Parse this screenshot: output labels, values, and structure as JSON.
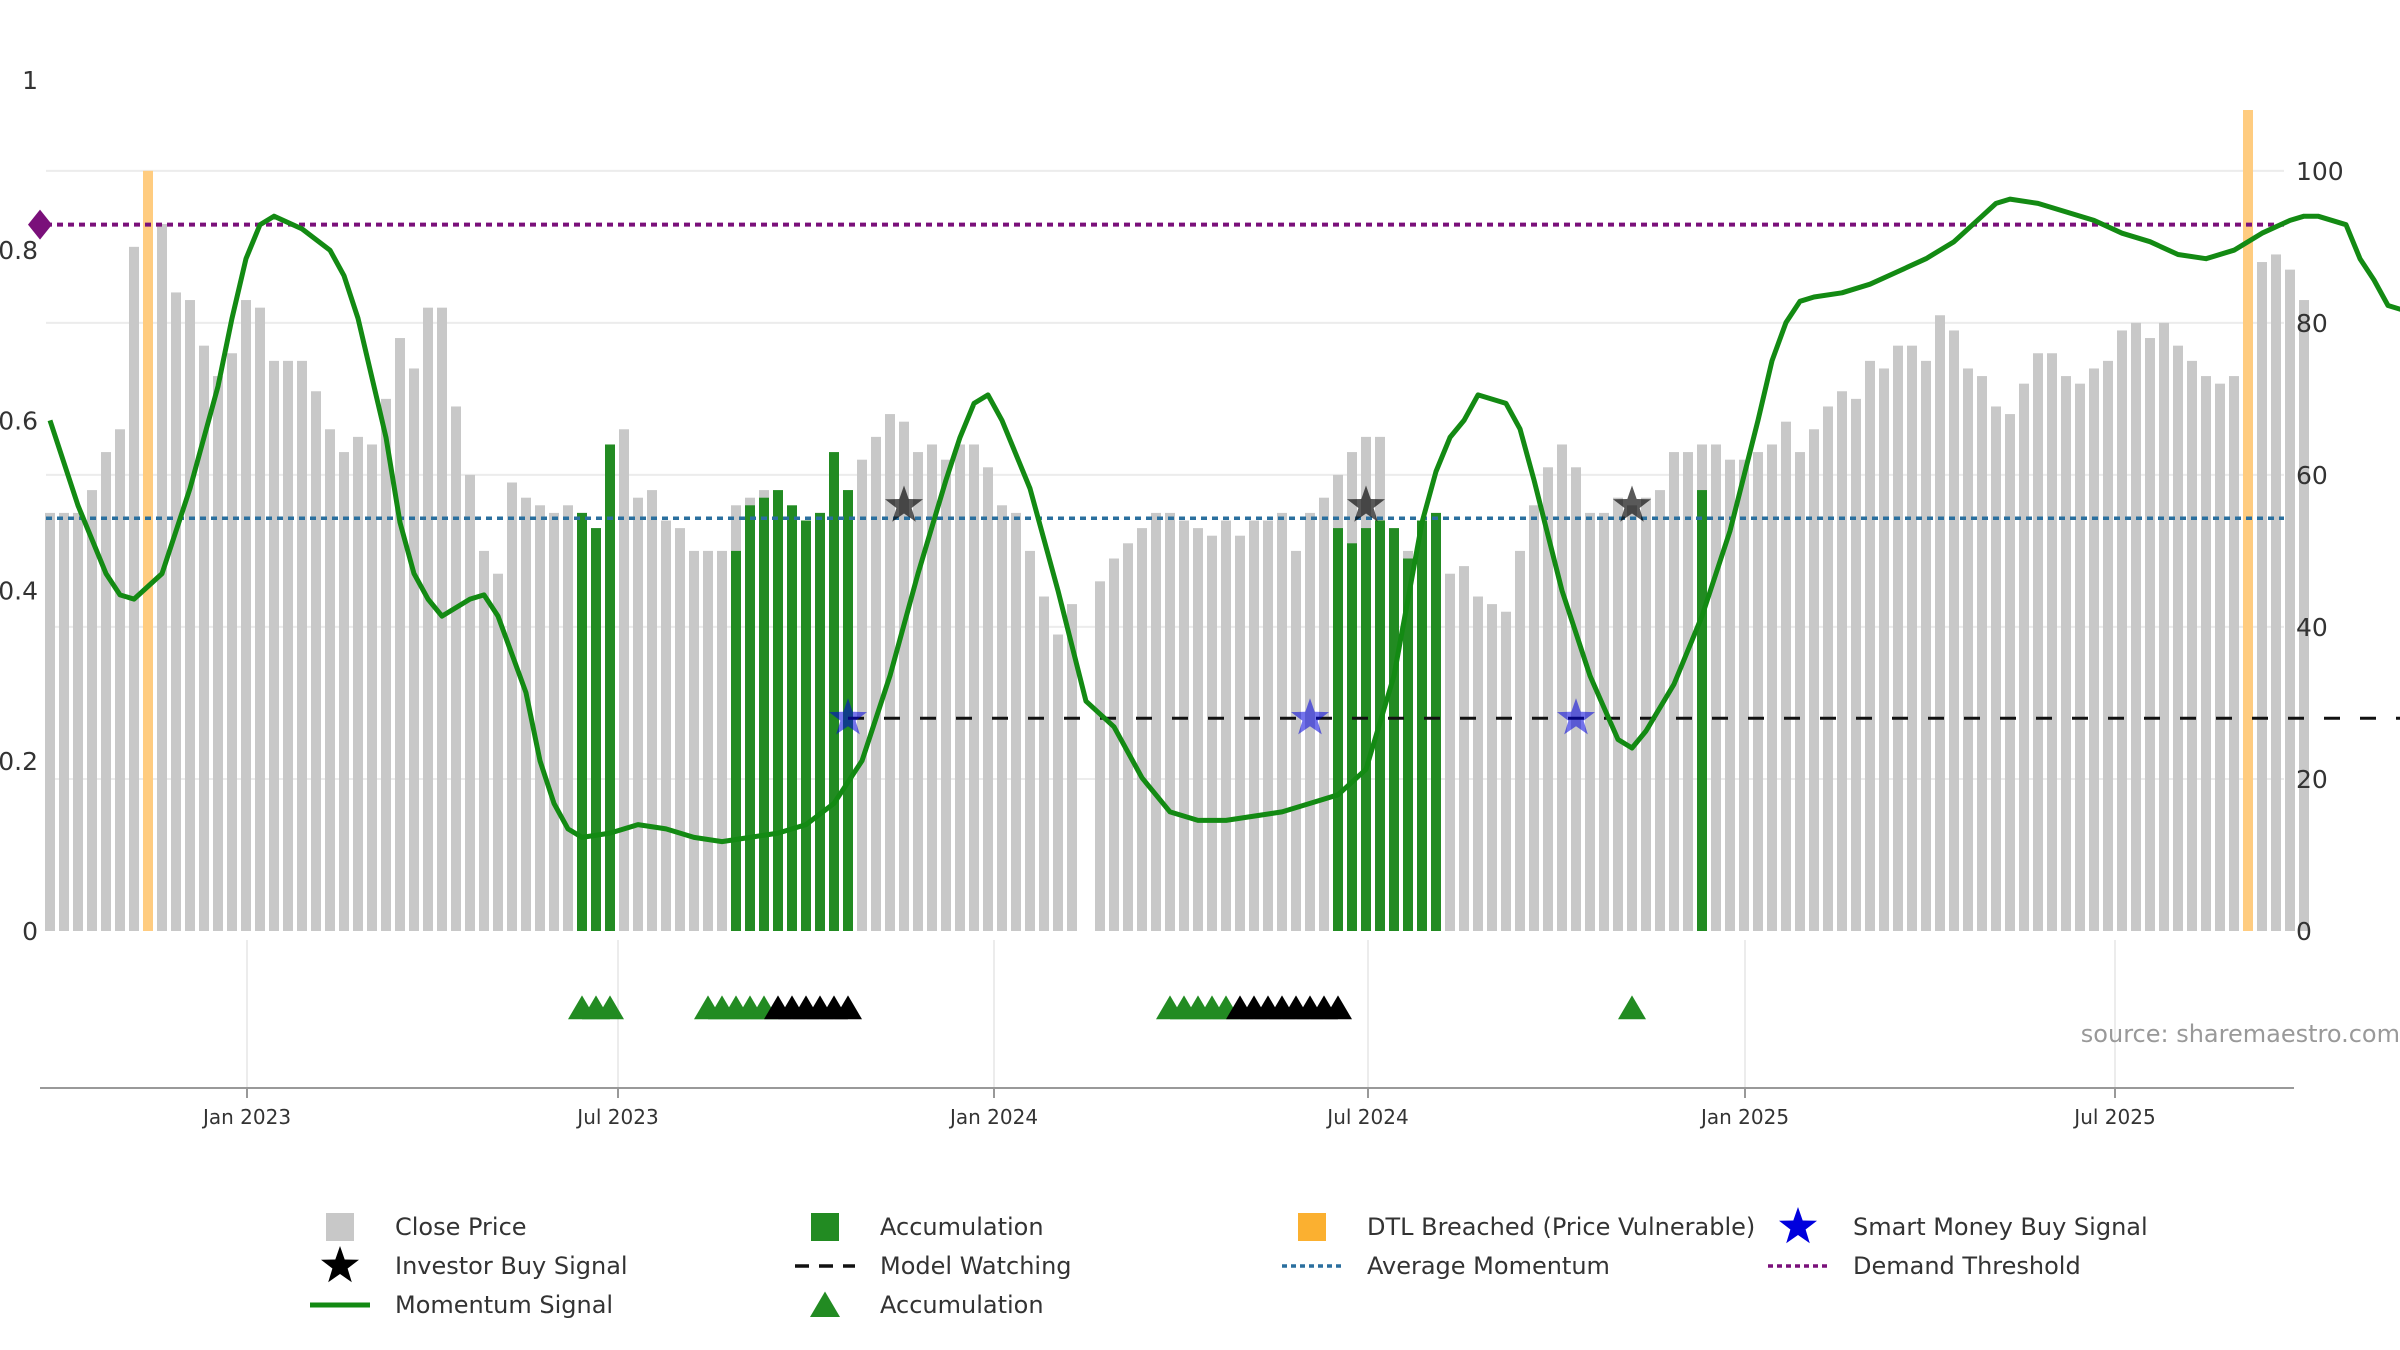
{
  "chart_data": {
    "type": "bar",
    "source": "source: sharemaestro.com",
    "x_ticks": [
      "Jan 2023",
      "Jul 2023",
      "Jan 2024",
      "Jul 2024",
      "Jan 2025",
      "Jul 2025"
    ],
    "left_axis": {
      "ylim": [
        0,
        1
      ],
      "ticks": [
        "0",
        "0.2",
        "0.4",
        "0.6",
        "0.8",
        "1"
      ]
    },
    "right_axis": {
      "ylim": [
        0,
        108
      ],
      "ticks": [
        "0",
        "20",
        "40",
        "60",
        "80",
        "100"
      ]
    },
    "close_price_weekly": [
      55,
      55,
      55,
      58,
      63,
      66,
      90,
      85,
      93,
      84,
      83,
      77,
      73,
      76,
      83,
      82,
      75,
      75,
      75,
      71,
      66,
      63,
      65,
      64,
      70,
      78,
      74,
      82,
      82,
      69,
      60,
      50,
      47,
      59,
      57,
      56,
      55,
      56,
      55,
      53,
      64,
      66,
      57,
      58,
      54,
      53,
      50,
      50,
      50,
      56,
      57,
      58,
      57,
      55,
      54,
      55,
      57,
      58,
      62,
      65,
      68,
      67,
      63,
      64,
      62,
      64,
      64,
      61,
      56,
      55,
      50,
      44,
      39,
      43,
      0,
      46,
      49,
      51,
      53,
      55,
      55,
      54,
      53,
      52,
      54,
      52,
      54,
      54,
      55,
      50,
      55,
      57,
      60,
      63,
      65,
      65,
      52,
      50,
      48,
      49,
      47,
      48,
      44,
      43,
      42,
      50,
      56,
      61,
      64,
      61,
      55,
      55,
      57,
      56,
      57,
      58,
      63,
      63,
      64,
      64,
      62,
      62,
      63,
      64,
      67,
      63,
      66,
      69,
      71,
      70,
      75,
      74,
      77,
      77,
      75,
      81,
      79,
      74,
      73,
      69,
      68,
      72,
      76,
      76,
      73,
      72,
      74,
      75,
      79,
      80,
      78,
      80,
      77,
      75,
      73,
      72,
      73,
      78,
      88,
      89,
      87,
      83
    ],
    "accumulation_bars_weekly": [
      0,
      0,
      0,
      0,
      0,
      0,
      0,
      0,
      0,
      0,
      0,
      0,
      0,
      0,
      0,
      0,
      0,
      0,
      0,
      0,
      0,
      0,
      0,
      0,
      0,
      0,
      0,
      0,
      0,
      0,
      0,
      0,
      0,
      0,
      0,
      0,
      0,
      0,
      55,
      53,
      64,
      0,
      0,
      0,
      0,
      0,
      0,
      0,
      0,
      50,
      56,
      57,
      58,
      56,
      54,
      55,
      63,
      58,
      0,
      0,
      0,
      0,
      0,
      0,
      0,
      0,
      0,
      0,
      0,
      0,
      0,
      0,
      0,
      0,
      0,
      0,
      0,
      0,
      0,
      0,
      0,
      0,
      0,
      0,
      0,
      0,
      0,
      0,
      0,
      0,
      0,
      0,
      53,
      51,
      53,
      54,
      53,
      49,
      54,
      55,
      0,
      0,
      0,
      0,
      0,
      0,
      0,
      0,
      0,
      0,
      0,
      0,
      0,
      0,
      0,
      0,
      0,
      0,
      58,
      0,
      0,
      0,
      0,
      0,
      0,
      0,
      0,
      0,
      0,
      0,
      0,
      0,
      0,
      0,
      0,
      0,
      0,
      0,
      0,
      0,
      0,
      0,
      0,
      0,
      0,
      0,
      0,
      0,
      0,
      0,
      0,
      0,
      0,
      0,
      0,
      0,
      0,
      0,
      0,
      0,
      0,
      0,
      0
    ],
    "dtl_breached_weeks": [
      7,
      157
    ],
    "momentum_signal": [
      [
        0,
        0.6
      ],
      [
        2,
        0.5
      ],
      [
        4,
        0.42
      ],
      [
        5,
        0.395
      ],
      [
        6,
        0.39
      ],
      [
        8,
        0.42
      ],
      [
        10,
        0.52
      ],
      [
        12,
        0.64
      ],
      [
        13,
        0.72
      ],
      [
        14,
        0.79
      ],
      [
        15,
        0.83
      ],
      [
        16,
        0.84
      ],
      [
        18,
        0.825
      ],
      [
        20,
        0.8
      ],
      [
        21,
        0.77
      ],
      [
        22,
        0.72
      ],
      [
        24,
        0.58
      ],
      [
        25,
        0.48
      ],
      [
        26,
        0.42
      ],
      [
        27,
        0.39
      ],
      [
        28,
        0.37
      ],
      [
        30,
        0.39
      ],
      [
        31,
        0.395
      ],
      [
        32,
        0.37
      ],
      [
        34,
        0.28
      ],
      [
        35,
        0.2
      ],
      [
        36,
        0.15
      ],
      [
        37,
        0.12
      ],
      [
        38,
        0.11
      ],
      [
        40,
        0.115
      ],
      [
        42,
        0.125
      ],
      [
        44,
        0.12
      ],
      [
        46,
        0.11
      ],
      [
        48,
        0.105
      ],
      [
        50,
        0.11
      ],
      [
        52,
        0.115
      ],
      [
        54,
        0.125
      ],
      [
        56,
        0.15
      ],
      [
        58,
        0.2
      ],
      [
        60,
        0.3
      ],
      [
        62,
        0.42
      ],
      [
        64,
        0.53
      ],
      [
        65,
        0.58
      ],
      [
        66,
        0.62
      ],
      [
        67,
        0.63
      ],
      [
        68,
        0.6
      ],
      [
        70,
        0.52
      ],
      [
        72,
        0.4
      ],
      [
        74,
        0.27
      ],
      [
        76,
        0.24
      ],
      [
        78,
        0.18
      ],
      [
        80,
        0.14
      ],
      [
        82,
        0.13
      ],
      [
        84,
        0.13
      ],
      [
        86,
        0.135
      ],
      [
        88,
        0.14
      ],
      [
        90,
        0.15
      ],
      [
        92,
        0.16
      ],
      [
        94,
        0.19
      ],
      [
        96,
        0.3
      ],
      [
        98,
        0.48
      ],
      [
        99,
        0.54
      ],
      [
        100,
        0.58
      ],
      [
        101,
        0.6
      ],
      [
        102,
        0.63
      ],
      [
        104,
        0.62
      ],
      [
        105,
        0.59
      ],
      [
        106,
        0.53
      ],
      [
        108,
        0.4
      ],
      [
        110,
        0.3
      ],
      [
        112,
        0.225
      ],
      [
        113,
        0.215
      ],
      [
        114,
        0.235
      ],
      [
        116,
        0.29
      ],
      [
        118,
        0.37
      ],
      [
        120,
        0.47
      ],
      [
        122,
        0.6
      ],
      [
        123,
        0.67
      ],
      [
        124,
        0.715
      ],
      [
        125,
        0.74
      ],
      [
        126,
        0.745
      ],
      [
        128,
        0.75
      ],
      [
        130,
        0.76
      ],
      [
        132,
        0.775
      ],
      [
        134,
        0.79
      ],
      [
        136,
        0.81
      ],
      [
        138,
        0.84
      ],
      [
        139,
        0.855
      ],
      [
        140,
        0.86
      ],
      [
        142,
        0.855
      ],
      [
        144,
        0.845
      ],
      [
        146,
        0.835
      ],
      [
        148,
        0.82
      ],
      [
        150,
        0.81
      ],
      [
        152,
        0.795
      ],
      [
        154,
        0.79
      ],
      [
        156,
        0.8
      ],
      [
        158,
        0.82
      ],
      [
        160,
        0.835
      ],
      [
        161,
        0.84
      ],
      [
        162,
        0.84
      ],
      [
        164,
        0.83
      ],
      [
        165,
        0.79
      ],
      [
        166,
        0.765
      ],
      [
        167,
        0.735
      ],
      [
        168,
        0.73
      ],
      [
        170,
        0.72
      ],
      [
        171,
        0.73
      ]
    ],
    "investor_buy_signal_weeks": [
      61,
      94,
      113
    ],
    "smart_money_buy_signal_weeks": [
      57,
      90,
      109
    ],
    "model_watching_segments": [
      [
        57,
        171
      ]
    ],
    "model_watching_value": 0.25,
    "accumulation_markers_weeks": [
      38,
      39,
      40,
      47,
      48,
      49,
      50,
      51
    ],
    "accumulation_markers_black_weeks": [
      52,
      53,
      54,
      55,
      56,
      57
    ],
    "accumulation_markers2_weeks": [
      80,
      81,
      82,
      83,
      84
    ],
    "accumulation_markers2_black_weeks": [
      85,
      86,
      87,
      88,
      89,
      90,
      91,
      92
    ],
    "accumulation_markers3_weeks": [
      113
    ],
    "average_momentum": 0.485,
    "demand_threshold": 0.83,
    "legend": [
      {
        "key": "close",
        "label": "Close Price"
      },
      {
        "key": "accum_bar",
        "label": "Accumulation"
      },
      {
        "key": "dtl",
        "label": "DTL Breached (Price Vulnerable)"
      },
      {
        "key": "smart",
        "label": "Smart Money Buy Signal"
      },
      {
        "key": "investor",
        "label": "Investor Buy Signal"
      },
      {
        "key": "watching",
        "label": "Model Watching"
      },
      {
        "key": "avgmom",
        "label": "Average Momentum"
      },
      {
        "key": "demand",
        "label": "Demand Threshold"
      },
      {
        "key": "momentum",
        "label": "Momentum Signal"
      },
      {
        "key": "accum_tri",
        "label": "Accumulation"
      }
    ],
    "colors": {
      "close": "#c8c8c8",
      "accumulation": "#228b22",
      "dtl": "#ffcc80",
      "smart": "#0000dd",
      "investor": "#000000",
      "momentum": "#138a13",
      "average_momentum": "#2a6f9e",
      "demand": "#7a107a",
      "grid": "#ececec",
      "axis": "#999999"
    }
  }
}
